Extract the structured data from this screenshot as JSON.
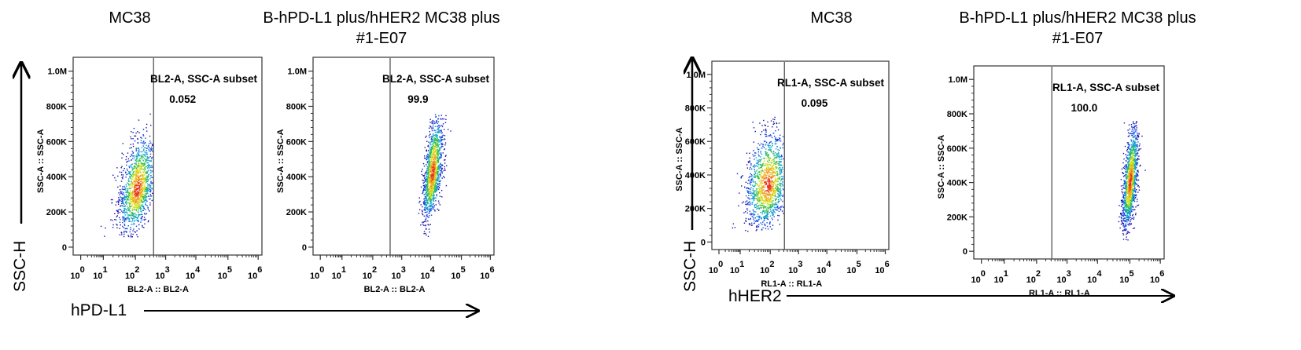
{
  "left_group": {
    "y_axis_label": "SSC-H",
    "x_axis_label": "hPD-L1"
  },
  "right_group": {
    "y_axis_label": "SSC-H",
    "x_axis_label": "hHER2"
  },
  "chart_data": [
    {
      "type": "scatter",
      "title": "MC38",
      "xlabel": "BL2-A :: BL2-A",
      "ylabel": "SSC-A :: SSC-A",
      "x_scale": "biexponential",
      "x_ticks": [
        0,
        1,
        2,
        3,
        4,
        5,
        6
      ],
      "y_ticks": [
        "0",
        "200K",
        "400K",
        "600K",
        "800K",
        "1.0M"
      ],
      "y_tick_values": [
        0,
        200000,
        400000,
        600000,
        800000,
        1000000
      ],
      "ylim": [
        0,
        1000000
      ],
      "gate": {
        "label": "BL2-A, SSC-A subset",
        "value": "0.052",
        "threshold_log10": 2.6
      },
      "population": {
        "x_center_log10": 2.05,
        "x_spread_log10": 0.35,
        "y_center": 330000,
        "y_spread": 120000,
        "tilt": 0.6
      }
    },
    {
      "type": "scatter",
      "title": "B-hPD-L1 plus/hHER2 MC38 plus #1-E07",
      "xlabel": "BL2-A :: BL2-A",
      "ylabel": "SSC-A :: SSC-A",
      "x_scale": "biexponential",
      "x_ticks": [
        0,
        1,
        2,
        3,
        4,
        5,
        6
      ],
      "y_ticks": [
        "0",
        "200K",
        "400K",
        "600K",
        "800K",
        "1.0M"
      ],
      "y_tick_values": [
        0,
        200000,
        400000,
        600000,
        800000,
        1000000
      ],
      "ylim": [
        0,
        1000000
      ],
      "gate": {
        "label": "BL2-A, SSC-A subset",
        "value": "99.9",
        "threshold_log10": 2.6
      },
      "population": {
        "x_center_log10": 4.05,
        "x_spread_log10": 0.2,
        "y_center": 420000,
        "y_spread": 130000,
        "tilt": 0.8
      }
    },
    {
      "type": "scatter",
      "title": "MC38",
      "xlabel": "RL1-A :: RL1-A",
      "ylabel": "SSC-A :: SSC-A",
      "x_scale": "biexponential",
      "x_ticks": [
        0,
        1,
        2,
        3,
        4,
        5,
        6
      ],
      "y_ticks": [
        "0",
        "200K",
        "400K",
        "600K",
        "800K",
        "1.0M"
      ],
      "y_tick_values": [
        0,
        200000,
        400000,
        600000,
        800000,
        1000000
      ],
      "ylim": [
        0,
        1000000
      ],
      "gate": {
        "label": "RL1-A, SSC-A subset",
        "value": "0.095",
        "threshold_log10": 2.5
      },
      "population": {
        "x_center_log10": 1.9,
        "x_spread_log10": 0.45,
        "y_center": 340000,
        "y_spread": 130000,
        "tilt": 0.3
      }
    },
    {
      "type": "scatter",
      "title": "B-hPD-L1 plus/hHER2 MC38 plus #1-E07",
      "xlabel": "RL1-A :: RL1-A",
      "ylabel": "SSC-A :: SSC-A",
      "x_scale": "biexponential",
      "x_ticks": [
        0,
        1,
        2,
        3,
        4,
        5,
        6
      ],
      "y_ticks": [
        "0",
        "200K",
        "400K",
        "600K",
        "800K",
        "1.0M"
      ],
      "y_tick_values": [
        0,
        200000,
        400000,
        600000,
        800000,
        1000000
      ],
      "ylim": [
        0,
        1000000
      ],
      "gate": {
        "label": "RL1-A, SSC-A subset",
        "value": "100.0",
        "threshold_log10": 2.5
      },
      "population": {
        "x_center_log10": 5.0,
        "x_spread_log10": 0.15,
        "y_center": 400000,
        "y_spread": 130000,
        "tilt": 0.8
      }
    }
  ]
}
